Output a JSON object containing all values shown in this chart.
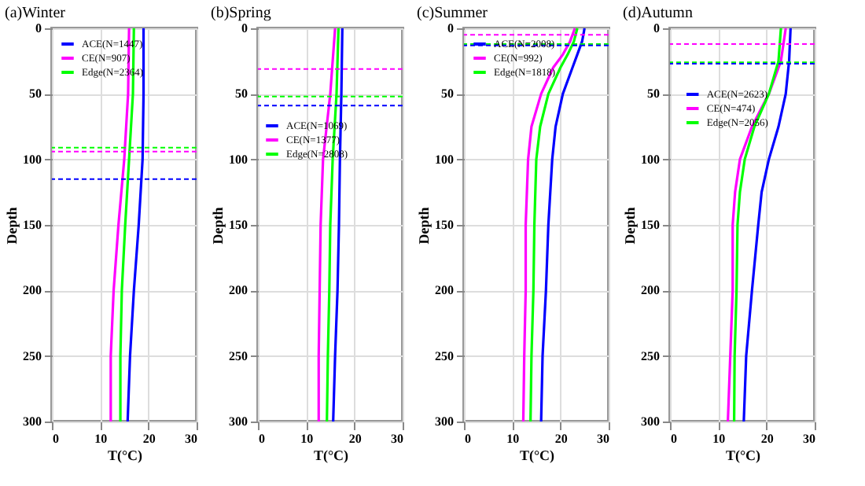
{
  "chart_data": [
    {
      "type": "line",
      "title": "(a)Winter",
      "xlabel": "T(°C)",
      "ylabel": "Depth",
      "xlim": [
        0,
        30
      ],
      "xticks": [
        0,
        10,
        20,
        30
      ],
      "ylim": [
        300,
        0
      ],
      "yticks": [
        0,
        50,
        100,
        150,
        200,
        250,
        300
      ],
      "grid": true,
      "legend": "top left",
      "line_style": "solid",
      "series": [
        {
          "name": "ACE(N=1447)",
          "color": "#0000ff",
          "x": [
            19,
            19,
            18.8,
            18,
            17,
            16.2,
            15.7
          ],
          "values": [
            0,
            50,
            100,
            150,
            200,
            250,
            300
          ]
        },
        {
          "name": "CE(N=907)",
          "color": "#ff00ff",
          "x": [
            16,
            15.8,
            15,
            13.8,
            12.8,
            12.2,
            12.2
          ],
          "values": [
            0,
            50,
            100,
            150,
            200,
            250,
            300
          ]
        },
        {
          "name": "Edge(N=2364)",
          "color": "#00ff00",
          "x": [
            17,
            16.8,
            16,
            15.2,
            14.5,
            14.2,
            14.2
          ],
          "values": [
            0,
            50,
            100,
            150,
            200,
            250,
            300
          ]
        }
      ],
      "ref_lines": [
        {
          "axis": "y",
          "value": 91,
          "color": "#00ff00",
          "line_style": "dashed"
        },
        {
          "axis": "y",
          "value": 94,
          "color": "#ff00ff",
          "line_style": "dashed"
        },
        {
          "axis": "y",
          "value": 115,
          "color": "#0000ff",
          "line_style": "dashed"
        }
      ]
    },
    {
      "type": "line",
      "title": "(b)Spring",
      "xlabel": "T(°C)",
      "ylabel": "Depth",
      "xlim": [
        0,
        30
      ],
      "xticks": [
        0,
        10,
        20,
        30
      ],
      "ylim": [
        300,
        0
      ],
      "yticks": [
        0,
        50,
        100,
        150,
        200,
        250,
        300
      ],
      "grid": true,
      "legend": "left",
      "line_style": "solid",
      "series": [
        {
          "name": "ACE(N=1069)",
          "color": "#0000ff",
          "x": [
            17.5,
            17.3,
            17,
            16.8,
            16.5,
            16,
            15.6
          ],
          "values": [
            0,
            50,
            100,
            150,
            200,
            250,
            300
          ]
        },
        {
          "name": "CE(N=1377)",
          "color": "#ff00ff",
          "x": [
            16,
            15,
            13.5,
            13,
            12.8,
            12.6,
            12.6
          ],
          "values": [
            0,
            50,
            100,
            150,
            200,
            250,
            300
          ]
        },
        {
          "name": "Edge(N=2808)",
          "color": "#00ff00",
          "x": [
            16.7,
            16.3,
            15.5,
            15,
            14.8,
            14.5,
            14.3
          ],
          "values": [
            0,
            50,
            100,
            150,
            200,
            250,
            300
          ]
        }
      ],
      "ref_lines": [
        {
          "axis": "y",
          "value": 31,
          "color": "#ff00ff",
          "line_style": "dashed"
        },
        {
          "axis": "y",
          "value": 52,
          "color": "#00ff00",
          "line_style": "dashed"
        },
        {
          "axis": "y",
          "value": 59,
          "color": "#0000ff",
          "line_style": "dashed"
        }
      ]
    },
    {
      "type": "line",
      "title": "(c)Summer",
      "xlabel": "T(°C)",
      "ylabel": "Depth",
      "xlim": [
        0,
        30
      ],
      "xticks": [
        0,
        10,
        20,
        30
      ],
      "ylim": [
        300,
        0
      ],
      "yticks": [
        0,
        50,
        100,
        150,
        200,
        250,
        300
      ],
      "grid": true,
      "legend": "top left",
      "line_style": "solid",
      "series": [
        {
          "name": "ACE(N=2008)",
          "color": "#0000ff",
          "x": [
            25,
            24.5,
            23.5,
            22.5,
            20.5,
            19,
            18.3,
            17.5,
            17,
            16.3,
            16
          ],
          "values": [
            0,
            10,
            20,
            30,
            50,
            75,
            100,
            150,
            200,
            250,
            300
          ]
        },
        {
          "name": "CE(N=992)",
          "color": "#ff00ff",
          "x": [
            23,
            22,
            20.5,
            18.5,
            16,
            14,
            13.3,
            12.8,
            12.8,
            12.5,
            12.3
          ],
          "values": [
            0,
            10,
            20,
            30,
            50,
            75,
            100,
            150,
            200,
            250,
            300
          ]
        },
        {
          "name": "Edge(N=1818)",
          "color": "#00ff00",
          "x": [
            23.5,
            22.8,
            21.5,
            20,
            17.5,
            15.8,
            15,
            14.6,
            14.4,
            14,
            13.8
          ],
          "values": [
            0,
            10,
            20,
            30,
            50,
            75,
            100,
            150,
            200,
            250,
            300
          ]
        }
      ],
      "ref_lines": [
        {
          "axis": "y",
          "value": 5,
          "color": "#ff00ff",
          "line_style": "dashed"
        },
        {
          "axis": "y",
          "value": 12,
          "color": "#00ff00",
          "line_style": "dashed"
        },
        {
          "axis": "y",
          "value": 13,
          "color": "#0000ff",
          "line_style": "dashed"
        }
      ]
    },
    {
      "type": "line",
      "title": "(d)Autumn",
      "xlabel": "T(°C)",
      "ylabel": "Depth",
      "xlim": [
        0,
        30
      ],
      "xticks": [
        0,
        10,
        20,
        30
      ],
      "ylim": [
        300,
        0
      ],
      "yticks": [
        0,
        50,
        100,
        150,
        200,
        250,
        300
      ],
      "grid": true,
      "legend": "top",
      "line_style": "solid",
      "series": [
        {
          "name": "ACE(N=2623)",
          "color": "#0000ff",
          "x": [
            25,
            24.7,
            24,
            22.5,
            20.5,
            19,
            18.3,
            17,
            15.8,
            15.3
          ],
          "values": [
            0,
            25,
            50,
            75,
            100,
            125,
            150,
            200,
            250,
            300
          ]
        },
        {
          "name": "CE(N=474)",
          "color": "#ff00ff",
          "x": [
            24,
            23,
            20.5,
            17,
            14.5,
            13.5,
            13,
            13,
            12.5,
            12
          ],
          "values": [
            0,
            25,
            50,
            75,
            100,
            125,
            150,
            200,
            250,
            300
          ]
        },
        {
          "name": "Edge(N=2056)",
          "color": "#00ff00",
          "x": [
            23,
            22.5,
            20.5,
            17.5,
            15.5,
            14.5,
            14,
            13.8,
            13.4,
            13.3
          ],
          "values": [
            0,
            25,
            50,
            75,
            100,
            125,
            150,
            200,
            250,
            300
          ]
        }
      ],
      "ref_lines": [
        {
          "axis": "y",
          "value": 12,
          "color": "#ff00ff",
          "line_style": "dashed"
        },
        {
          "axis": "y",
          "value": 26,
          "color": "#00ff00",
          "line_style": "dashed"
        },
        {
          "axis": "y",
          "value": 27,
          "color": "#0000ff",
          "line_style": "dashed"
        }
      ]
    }
  ]
}
